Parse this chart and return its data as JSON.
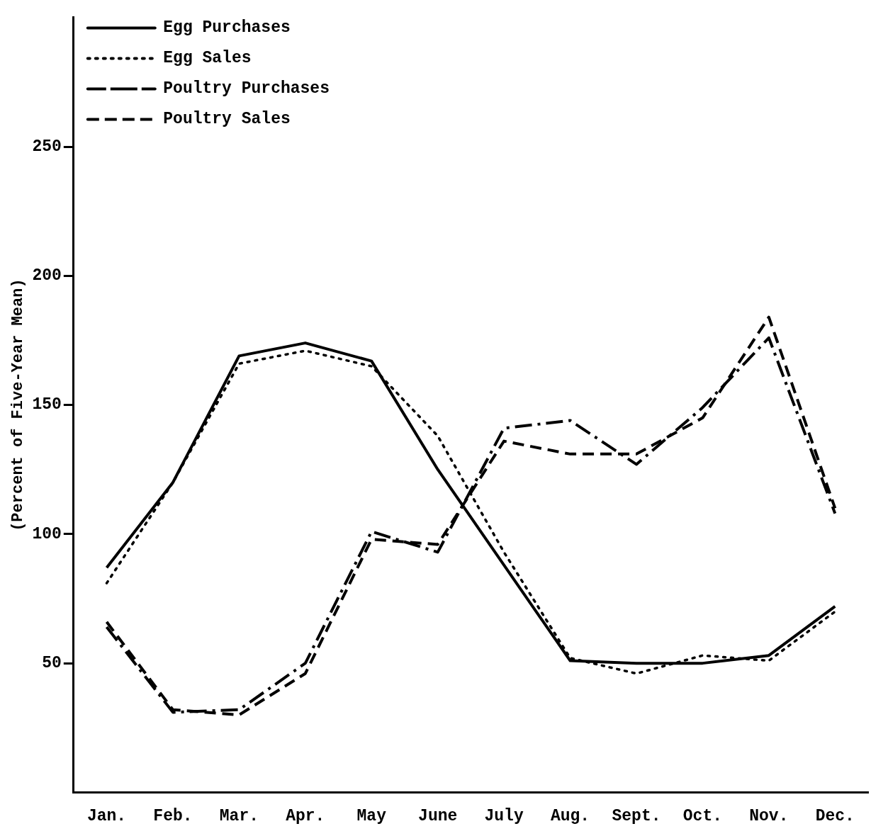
{
  "chart_data": {
    "type": "line",
    "ylabel": "(Percent of Five-Year Mean)",
    "categories": [
      "Jan.",
      "Feb.",
      "Mar.",
      "Apr.",
      "May",
      "June",
      "July",
      "Aug.",
      "Sept.",
      "Oct.",
      "Nov.",
      "Dec."
    ],
    "ylim": [
      0,
      300
    ],
    "yticks": [
      50,
      100,
      150,
      200,
      250
    ],
    "grid": false,
    "legend": "top left",
    "marker": "none",
    "series": [
      {
        "name": "Egg Purchases",
        "color": "#000000",
        "line_style": "solid",
        "values": [
          87,
          120,
          169,
          174,
          167,
          125,
          88,
          51,
          50,
          50,
          53,
          72
        ]
      },
      {
        "name": "Egg Sales",
        "color": "#000000",
        "line_style": "dotted",
        "values": [
          81,
          120,
          166,
          171,
          165,
          138,
          93,
          52,
          46,
          53,
          51,
          70
        ]
      },
      {
        "name": "Poultry Purchases",
        "color": "#000000",
        "line_style": "dashdot",
        "values": [
          64,
          31,
          32,
          50,
          101,
          93,
          141,
          144,
          127,
          149,
          176,
          108
        ]
      },
      {
        "name": "Poultry Sales",
        "color": "#000000",
        "line_style": "dashed",
        "values": [
          66,
          32,
          30,
          46,
          98,
          96,
          136,
          131,
          131,
          145,
          184,
          110
        ]
      }
    ]
  }
}
